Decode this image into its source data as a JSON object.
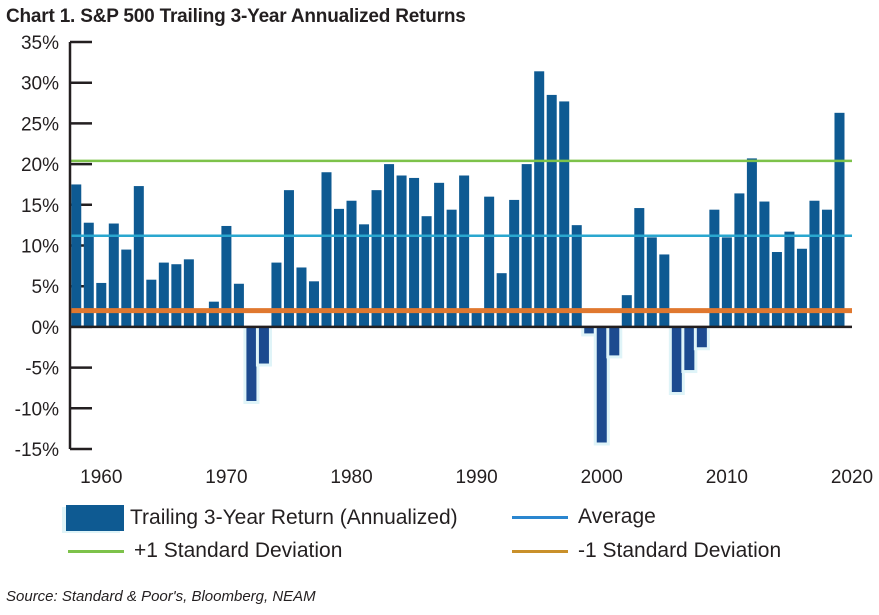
{
  "chart_data": {
    "type": "bar",
    "title": "Chart 1. S&P 500 Trailing 3-Year Annualized Returns",
    "xlabel": "",
    "ylabel": "",
    "xlim": [
      1957.5,
      2020
    ],
    "ylim": [
      -15,
      35
    ],
    "yticks": [
      35,
      30,
      25,
      20,
      15,
      10,
      5,
      0,
      -5,
      -10,
      -15
    ],
    "ytick_labels": [
      "35%",
      "30%",
      "25%",
      "20%",
      "15%",
      "10%",
      "5%",
      "0%",
      "-5%",
      "-10%",
      "-15%"
    ],
    "xticks": [
      1960,
      1970,
      1980,
      1990,
      2000,
      2010,
      2020
    ],
    "xtick_labels": [
      "1960",
      "1970",
      "1980",
      "1990",
      "2000",
      "2010",
      "2020"
    ],
    "x": [
      1958,
      1959,
      1960,
      1961,
      1962,
      1963,
      1964,
      1965,
      1966,
      1967,
      1968,
      1969,
      1970,
      1971,
      1972,
      1973,
      1974,
      1975,
      1976,
      1977,
      1978,
      1979,
      1980,
      1981,
      1982,
      1983,
      1984,
      1985,
      1986,
      1987,
      1988,
      1989,
      1990,
      1991,
      1992,
      1993,
      1994,
      1995,
      1996,
      1997,
      1998,
      1999,
      2000,
      2001,
      2002,
      2003,
      2004,
      2005,
      2006,
      2007,
      2008,
      2009,
      2010,
      2011,
      2012,
      2013,
      2014,
      2015,
      2016,
      2017,
      2018,
      2019
    ],
    "series": [
      {
        "name": "Trailing 3-Year Return (Annualized)",
        "color": "#0e5a92",
        "values": [
          17.5,
          12.8,
          5.4,
          12.7,
          9.5,
          17.3,
          5.8,
          7.9,
          7.7,
          8.3,
          2.0,
          3.1,
          12.4,
          5.3,
          -9.1,
          -4.5,
          7.9,
          16.8,
          7.3,
          5.6,
          19.0,
          14.5,
          15.5,
          12.6,
          16.8,
          20.0,
          18.6,
          18.3,
          13.6,
          17.7,
          14.4,
          18.6,
          2.0,
          16.0,
          6.6,
          15.6,
          20.0,
          31.4,
          28.5,
          27.7,
          12.5,
          -0.8,
          -14.2,
          -3.5,
          3.9,
          14.6,
          11.0,
          8.9,
          -8.0,
          -5.3,
          -2.5,
          14.4,
          11.0,
          16.4,
          20.7,
          15.4,
          9.2,
          11.7,
          9.6,
          15.5,
          14.4,
          26.3
        ]
      }
    ],
    "reference_lines": [
      {
        "name": "Average",
        "value": 11.2,
        "color": "#2aa7cf"
      },
      {
        "name": "+1 Standard Deviation",
        "value": 20.4,
        "color": "#7dc24a"
      },
      {
        "name": "-1 Standard Deviation",
        "value": 2.0,
        "color": "#e0782f"
      }
    ],
    "legend_position": "bottom"
  },
  "legend": {
    "bar_label": "Trailing 3-Year Return (Annualized)",
    "average_label": "Average",
    "plus_sd_label": "+1 Standard Deviation",
    "minus_sd_label": "-1 Standard Deviation",
    "average_color": "#2a86cf",
    "plus_sd_color": "#7dc24a",
    "minus_sd_color": "#c9902a"
  },
  "source": "Source: Standard & Poor's, Bloomberg, NEAM"
}
